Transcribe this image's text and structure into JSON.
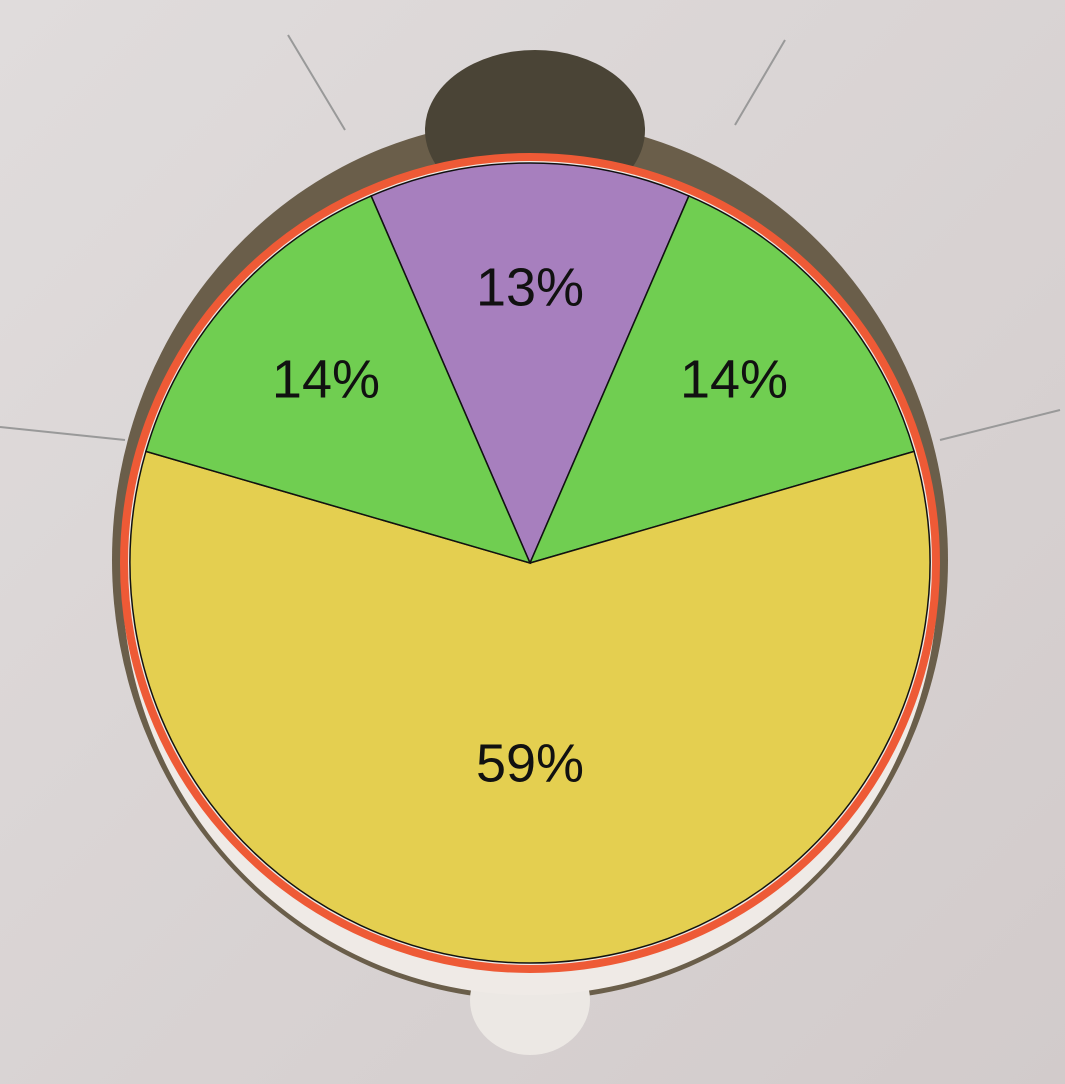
{
  "chart_data": {
    "type": "pie",
    "values": [
      13,
      14,
      59,
      14
    ],
    "value_labels": [
      "13%",
      "14%",
      "59%",
      "14%"
    ],
    "colors": [
      "#9d6fb8",
      "#5ec93c",
      "#e3cb3b",
      "#5ec93c"
    ]
  }
}
